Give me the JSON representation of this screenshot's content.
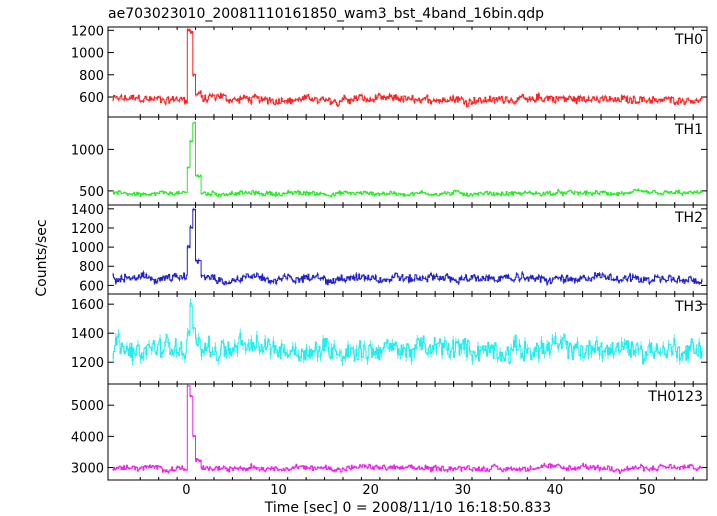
{
  "chart_data": {
    "type": "line",
    "title": "ae703023010_20081110161850_wam3_bst_4band_16bin.qdp",
    "xlabel": "Time [sec] 0 = 2008/11/10 16:18:50.833",
    "ylabel": "Counts/sec",
    "xlim": [
      -8.5,
      56.5
    ],
    "xticks": [
      0,
      10,
      20,
      30,
      40,
      50
    ],
    "grid": false,
    "panels": [
      {
        "name": "TH0",
        "color": "#ff2222",
        "ylim": [
          420,
          1230
        ],
        "yticks": [
          600,
          800,
          1000,
          1200
        ],
        "baseline": 580,
        "noise": 45,
        "burst": [
          [
            0.0,
            1200
          ],
          [
            0.3,
            1180
          ],
          [
            0.6,
            800
          ]
        ]
      },
      {
        "name": "TH1",
        "color": "#22ee22",
        "ylim": [
          330,
          1390
        ],
        "yticks": [
          500,
          1000
        ],
        "baseline": 470,
        "noise": 35,
        "burst": [
          [
            0.0,
            780
          ],
          [
            0.3,
            1100
          ],
          [
            0.6,
            1320
          ]
        ]
      },
      {
        "name": "TH2",
        "color": "#2222cc",
        "ylim": [
          510,
          1440
        ],
        "yticks": [
          600,
          800,
          1000,
          1200,
          1400
        ],
        "baseline": 670,
        "noise": 55,
        "burst": [
          [
            0.0,
            1000
          ],
          [
            0.3,
            1200
          ],
          [
            0.6,
            1400
          ]
        ]
      },
      {
        "name": "TH3",
        "color": "#22eeee",
        "ylim": [
          1050,
          1670
        ],
        "yticks": [
          1200,
          1400,
          1600
        ],
        "baseline": 1290,
        "noise": 90,
        "burst": [
          [
            0.0,
            1400
          ],
          [
            0.3,
            1600
          ],
          [
            0.6,
            1450
          ]
        ]
      },
      {
        "name": "TH0123",
        "color": "#ee22ee",
        "ylim": [
          2600,
          5680
        ],
        "yticks": [
          3000,
          4000,
          5000
        ],
        "baseline": 2980,
        "noise": 110,
        "burst": [
          [
            0.0,
            5600
          ],
          [
            0.3,
            5300
          ],
          [
            0.6,
            4000
          ]
        ]
      }
    ],
    "bin_width": 0.1
  }
}
